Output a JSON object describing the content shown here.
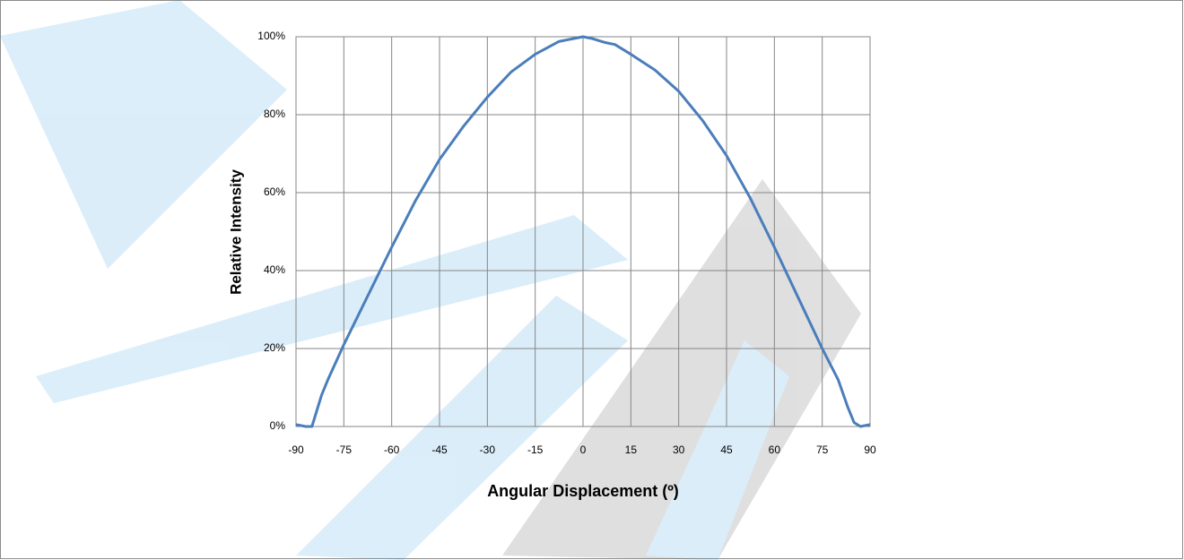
{
  "chart_data": {
    "type": "line",
    "x_label": "Angular Displacement (º)",
    "y_label": "Relative Intensity",
    "x": [
      -90,
      -87,
      -85,
      -82,
      -80,
      -75,
      -67.5,
      -60,
      -52.5,
      -45,
      -37.5,
      -30,
      -22.5,
      -15,
      -7.5,
      0,
      3,
      7,
      10,
      15,
      22.5,
      30,
      37.5,
      45,
      52.5,
      60,
      67.5,
      75,
      80,
      83,
      85,
      87,
      90
    ],
    "values": [
      0.5,
      0,
      0,
      8,
      12,
      21,
      33.5,
      46,
      58,
      68.5,
      77,
      84.5,
      91,
      95.5,
      98.8,
      100,
      99.5,
      98.5,
      98,
      95.5,
      91.5,
      86,
      78.5,
      69.5,
      58.5,
      46,
      33,
      20,
      12,
      5,
      1,
      0,
      0.5
    ],
    "color": "#4a7ebb",
    "xlim": [
      -90,
      90
    ],
    "xticks": [
      -90,
      -75,
      -60,
      -45,
      -30,
      -15,
      0,
      15,
      30,
      45,
      60,
      75,
      90
    ],
    "ylim": [
      0,
      100
    ],
    "yticks": [
      {
        "value": 0,
        "label": "0%"
      },
      {
        "value": 20,
        "label": "20%"
      },
      {
        "value": 40,
        "label": "40%"
      },
      {
        "value": 60,
        "label": "60%"
      },
      {
        "value": 80,
        "label": "80%"
      },
      {
        "value": 100,
        "label": "100%"
      }
    ],
    "grid": true
  }
}
